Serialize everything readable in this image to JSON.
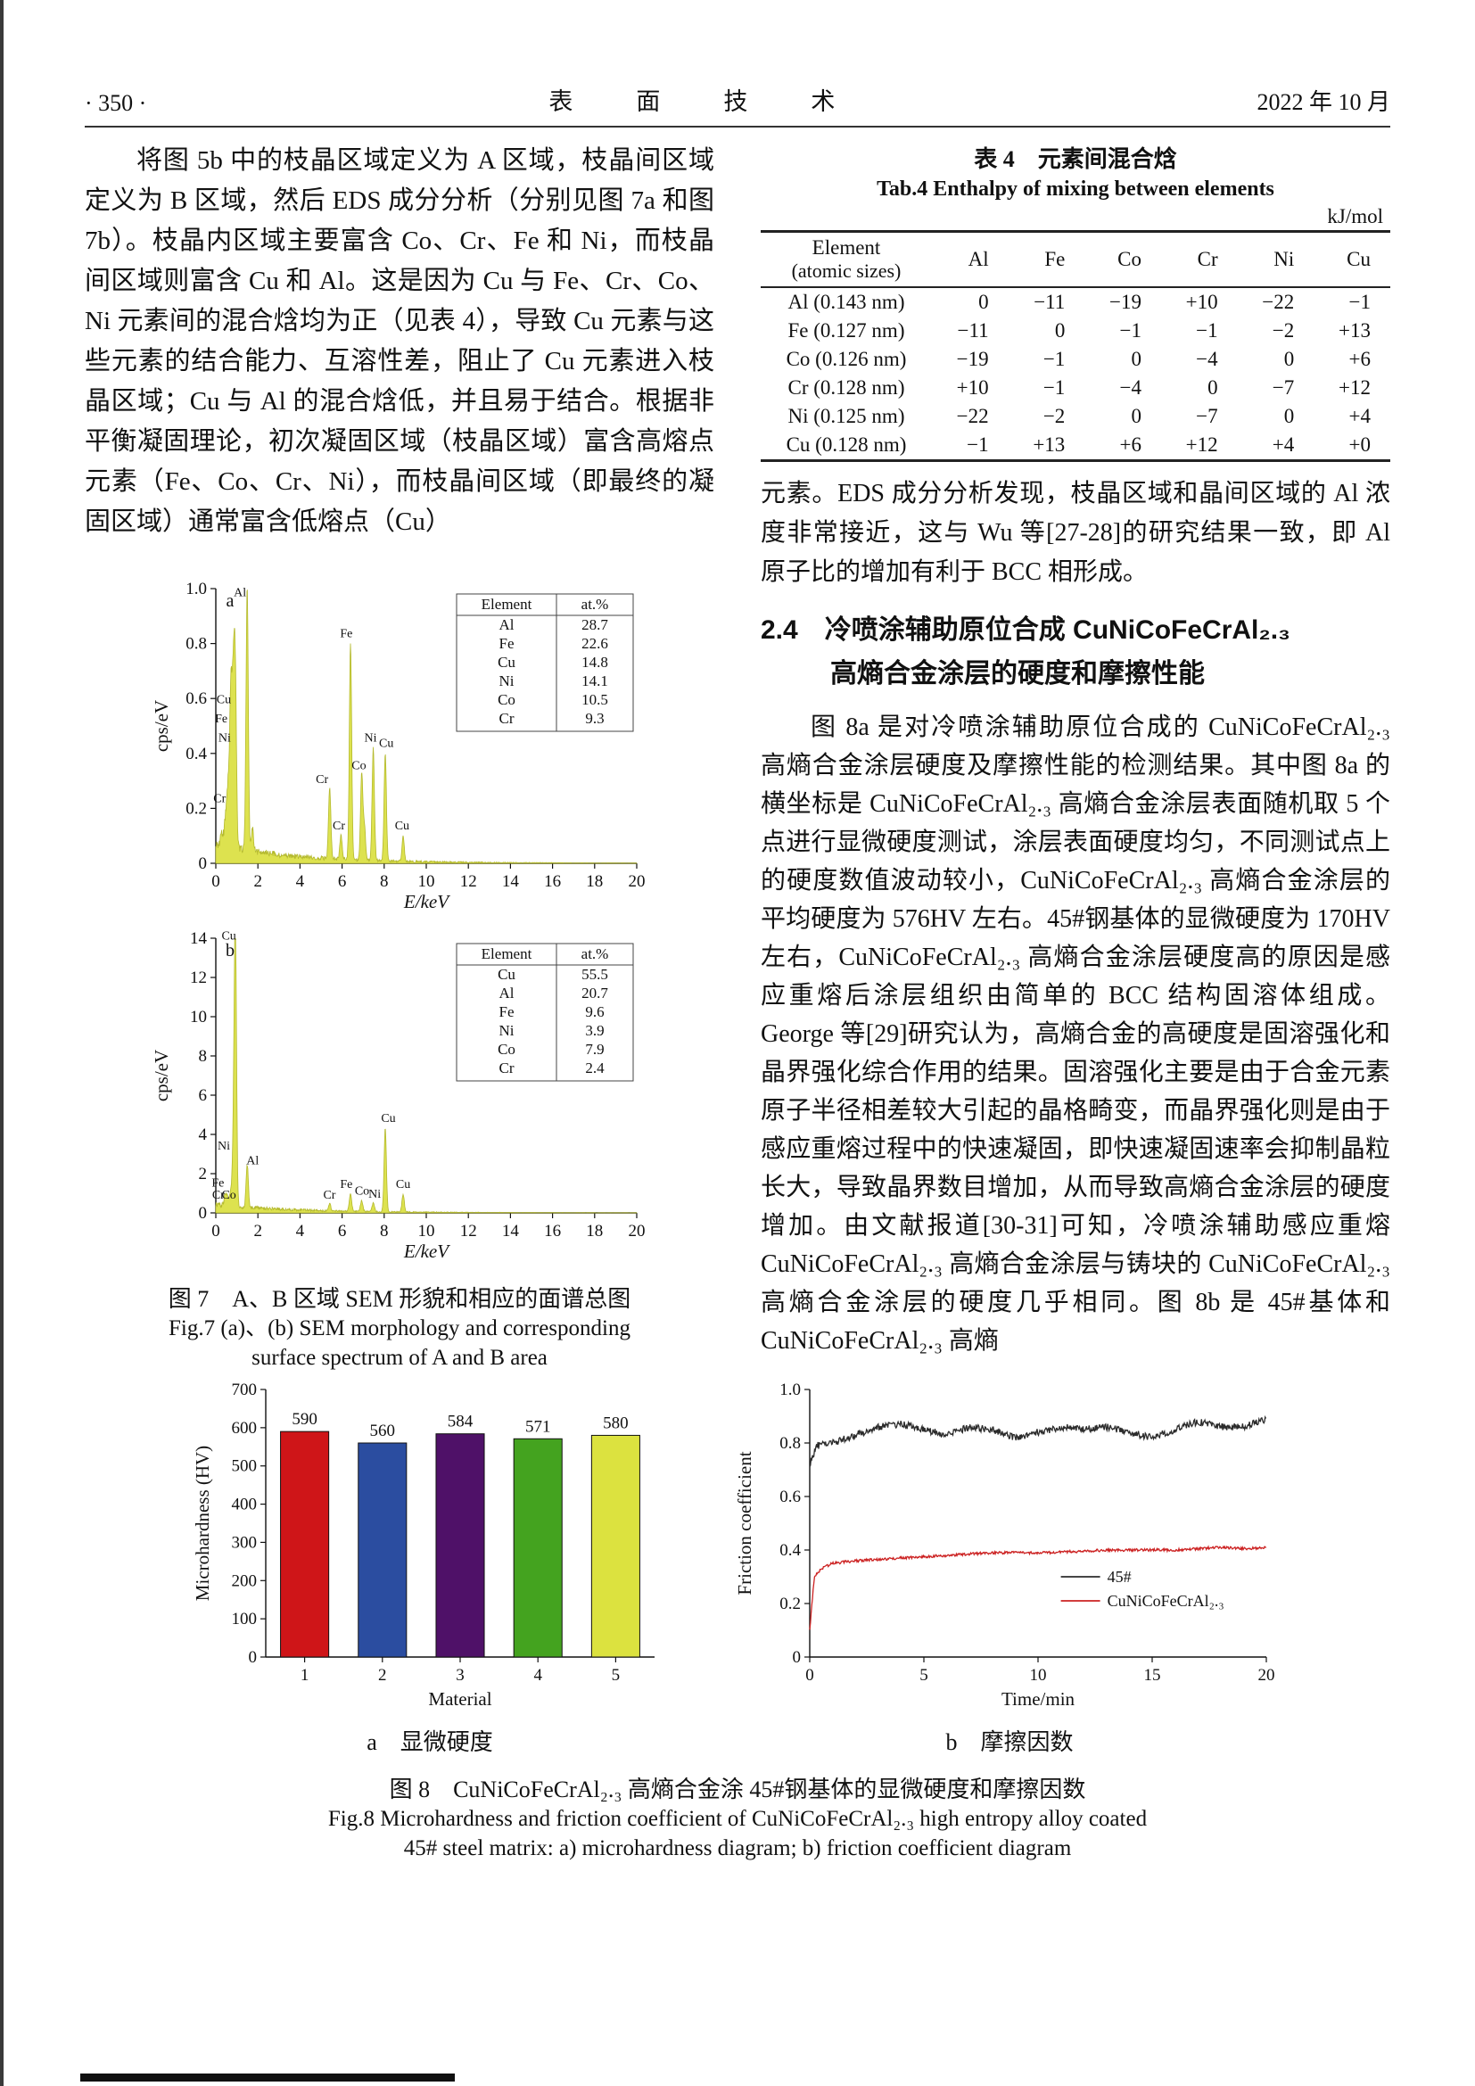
{
  "header": {
    "page_no": "· 350 ·",
    "journal": "表　面　技　术",
    "date": "2022 年 10 月"
  },
  "left": {
    "para1": "将图 5b 中的枝晶区域定义为 A 区域，枝晶间区域定义为 B 区域，然后 EDS 成分分析（分别见图 7a 和图 7b）。枝晶内区域主要富含 Co、Cr、Fe 和 Ni，而枝晶间区域则富含 Cu 和 Al。这是因为 Cu 与 Fe、Cr、Co、Ni 元素间的混合焓均为正（见表 4），导致 Cu 元素与这些元素的结合能力、互溶性差，阻止了 Cu 元素进入枝晶区域；Cu 与 Al 的混合焓低，并且易于结合。根据非平衡凝固理论，初次凝固区域（枝晶区域）富含高熔点元素（Fe、Co、Cr、Ni），而枝晶间区域（即最终的凝固区域）通常富含低熔点（Cu）",
    "fig7": {
      "caption_cn": "图 7　A、B 区域 SEM 形貌和相应的面谱总图",
      "caption_en1": "Fig.7 (a)、(b) SEM morphology and corresponding",
      "caption_en2": "surface spectrum of A and B area"
    }
  },
  "table4": {
    "title_cn": "表 4　元素间混合焓",
    "title_en": "Tab.4 Enthalpy of mixing between elements",
    "unit": "kJ/mol",
    "header_main": "Element",
    "header_sub": "(atomic sizes)",
    "columns": [
      "Al",
      "Fe",
      "Co",
      "Cr",
      "Ni",
      "Cu"
    ],
    "rows": [
      {
        "element": "Al (0.143 nm)",
        "values": [
          "0",
          "−11",
          "−19",
          "+10",
          "−22",
          "−1"
        ]
      },
      {
        "element": "Fe (0.127 nm)",
        "values": [
          "−11",
          "0",
          "−1",
          "−1",
          "−2",
          "+13"
        ]
      },
      {
        "element": "Co (0.126 nm)",
        "values": [
          "−19",
          "−1",
          "0",
          "−4",
          "0",
          "+6"
        ]
      },
      {
        "element": "Cr (0.128 nm)",
        "values": [
          "+10",
          "−1",
          "−4",
          "0",
          "−7",
          "+12"
        ]
      },
      {
        "element": "Ni (0.125 nm)",
        "values": [
          "−22",
          "−2",
          "0",
          "−7",
          "0",
          "+4"
        ]
      },
      {
        "element": "Cu (0.128 nm)",
        "values": [
          "−1",
          "+13",
          "+6",
          "+12",
          "+4",
          "+0"
        ]
      }
    ]
  },
  "right": {
    "para1": "元素。EDS 成分分析发现，枝晶区域和晶间区域的 Al 浓度非常接近，这与 Wu 等[27-28]的研究结果一致，即 Al 原子比的增加有利于 BCC 相形成。",
    "heading_line1": "2.4　冷喷涂辅助原位合成 CuNiCoFeCrAl₂.₃",
    "heading_line2": "高熵合金涂层的硬度和摩擦性能",
    "para2": "图 8a 是对冷喷涂辅助原位合成的 CuNiCoFeCrAl₂.₃ 高熵合金涂层硬度及摩擦性能的检测结果。其中图 8a 的横坐标是 CuNiCoFeCrAl₂.₃ 高熵合金涂层表面随机取 5 个点进行显微硬度测试，涂层表面硬度均匀，不同测试点上的硬度数值波动较小，CuNiCoFeCrAl₂.₃ 高熵合金涂层的平均硬度为 576HV 左右。45#钢基体的显微硬度为 170HV 左右，CuNiCoFeCrAl₂.₃ 高熵合金涂层硬度高的原因是感应重熔后涂层组织由简单的 BCC 结构固溶体组成。George 等[29]研究认为，高熵合金的高硬度是固溶强化和晶界强化综合作用的结果。固溶强化主要是由于合金元素原子半径相差较大引起的晶格畸变，而晶界强化则是由于感应重熔过程中的快速凝固，即快速凝固速率会抑制晶粒长大，导致晶界数目增加，从而导致高熵合金涂层的硬度增加。由文献报道[30-31]可知，冷喷涂辅助感应重熔 CuNiCoFeCrAl₂.₃ 高熵合金涂层与铸块的 CuNiCoFeCrAl₂.₃ 高熵合金涂层的硬度几乎相同。图 8b 是 45#基体和 CuNiCoFeCrAl₂.₃ 高熵"
  },
  "fig8": {
    "caption_cn": "图 8　CuNiCoFeCrAl₂.₃ 高熵合金涂 45#钢基体的显微硬度和摩擦因数",
    "caption_en1": "Fig.8 Microhardness and friction coefficient of CuNiCoFeCrAl₂.₃ high entropy alloy coated",
    "caption_en2": "45# steel matrix: a) microhardness diagram; b) friction coefficient diagram"
  },
  "chart_data": [
    {
      "id": "eds-a",
      "type": "area",
      "panel": "a",
      "xlabel": "E/keV",
      "xlabel_italic": true,
      "ylabel": "cps/eV",
      "xlim": [
        0,
        20
      ],
      "ylim": [
        0,
        1.0
      ],
      "xtick_step": 2,
      "ytick_step": 0.2,
      "fill": "#dde24f",
      "stroke": "#b4b92e",
      "continuum": 0.055,
      "noise": 0.035,
      "peaks": [
        [
          0.28,
          0.05
        ],
        [
          0.45,
          0.09
        ],
        [
          0.57,
          0.2
        ],
        [
          0.7,
          0.48
        ],
        [
          0.78,
          0.28
        ],
        [
          0.85,
          0.44
        ],
        [
          0.93,
          0.55
        ],
        [
          1.49,
          0.95
        ],
        [
          1.74,
          0.08
        ],
        [
          5.41,
          0.26
        ],
        [
          5.95,
          0.09
        ],
        [
          6.4,
          0.79
        ],
        [
          6.93,
          0.31
        ],
        [
          7.06,
          0.12
        ],
        [
          7.48,
          0.41
        ],
        [
          8.05,
          0.39
        ],
        [
          8.9,
          0.09
        ]
      ],
      "labels": [
        {
          "t": "Al",
          "x": 1.15,
          "y": 0.96
        },
        {
          "t": "Cu",
          "x": 0.38,
          "y": 0.57
        },
        {
          "t": "Fe",
          "x": 0.26,
          "y": 0.5
        },
        {
          "t": "Ni",
          "x": 0.42,
          "y": 0.43
        },
        {
          "t": "Cr",
          "x": 0.18,
          "y": 0.21
        },
        {
          "t": "Cr",
          "x": 5.05,
          "y": 0.28
        },
        {
          "t": "Cr",
          "x": 5.85,
          "y": 0.11
        },
        {
          "t": "Fe",
          "x": 6.2,
          "y": 0.81
        },
        {
          "t": "Co",
          "x": 6.8,
          "y": 0.33
        },
        {
          "t": "Ni",
          "x": 7.35,
          "y": 0.43
        },
        {
          "t": "Cu",
          "x": 8.1,
          "y": 0.41
        },
        {
          "t": "Cu",
          "x": 8.85,
          "y": 0.11
        }
      ],
      "legend": {
        "header": [
          "Element",
          "at.%"
        ],
        "rows": [
          [
            "Al",
            "28.7"
          ],
          [
            "Fe",
            "22.6"
          ],
          [
            "Cu",
            "14.8"
          ],
          [
            "Ni",
            "14.1"
          ],
          [
            "Co",
            "10.5"
          ],
          [
            "Cr",
            "9.3"
          ]
        ]
      }
    },
    {
      "id": "eds-b",
      "type": "area",
      "panel": "b",
      "xlabel": "E/keV",
      "xlabel_italic": true,
      "ylabel": "cps/eV",
      "xlim": [
        0,
        20
      ],
      "ylim": [
        0,
        14
      ],
      "xtick_step": 2,
      "ytick_step": 2,
      "fill": "#dde24f",
      "stroke": "#b4b92e",
      "continuum": 0.022,
      "noise": 0.018,
      "peaks": [
        [
          0.45,
          0.55
        ],
        [
          0.57,
          0.4
        ],
        [
          0.7,
          0.55
        ],
        [
          0.78,
          0.5
        ],
        [
          0.85,
          2.9
        ],
        [
          0.93,
          13.7
        ],
        [
          1.49,
          2.2
        ],
        [
          5.41,
          0.35
        ],
        [
          6.4,
          0.9
        ],
        [
          6.93,
          0.55
        ],
        [
          7.48,
          0.45
        ],
        [
          8.05,
          4.25
        ],
        [
          8.9,
          0.9
        ]
      ],
      "labels": [
        {
          "t": "Cu",
          "x": 0.62,
          "y": 13.75
        },
        {
          "t": "Ni",
          "x": 0.38,
          "y": 3.05
        },
        {
          "t": "Al",
          "x": 1.75,
          "y": 2.3
        },
        {
          "t": "Fe",
          "x": 0.1,
          "y": 1.15
        },
        {
          "t": "Cr",
          "x": 0.12,
          "y": 0.55
        },
        {
          "t": "Co",
          "x": 0.62,
          "y": 0.55
        },
        {
          "t": "Fe",
          "x": 6.2,
          "y": 1.1
        },
        {
          "t": "Cr",
          "x": 5.4,
          "y": 0.55
        },
        {
          "t": "Co",
          "x": 6.95,
          "y": 0.75
        },
        {
          "t": "Ni",
          "x": 7.55,
          "y": 0.6
        },
        {
          "t": "Cu",
          "x": 8.2,
          "y": 4.45
        },
        {
          "t": "Cu",
          "x": 8.9,
          "y": 1.1
        }
      ],
      "legend": {
        "header": [
          "Element",
          "at.%"
        ],
        "rows": [
          [
            "Cu",
            "55.5"
          ],
          [
            "Al",
            "20.7"
          ],
          [
            "Fe",
            "9.6"
          ],
          [
            "Ni",
            "3.9"
          ],
          [
            "Co",
            "7.9"
          ],
          [
            "Cr",
            "2.4"
          ]
        ]
      }
    },
    {
      "id": "hardness-bar",
      "type": "bar",
      "categories": [
        "1",
        "2",
        "3",
        "4",
        "5"
      ],
      "values": [
        590,
        560,
        584,
        571,
        580
      ],
      "colors": [
        "#cf1518",
        "#2b4da0",
        "#4f1168",
        "#44a31f",
        "#dce23f"
      ],
      "xlabel": "Material",
      "ylabel": "Microhardness (HV)",
      "ylim": [
        0,
        700
      ],
      "ytick_step": 100,
      "sub_caption": "a　显微硬度"
    },
    {
      "id": "friction-line",
      "type": "line",
      "xlabel": "Time/min",
      "ylabel": "Friction coefficient",
      "xlim": [
        0,
        20
      ],
      "ylim": [
        0,
        1.0
      ],
      "xticks": [
        0,
        5,
        10,
        15,
        20
      ],
      "ytick_step": 0.2,
      "legend_pos": [
        11,
        0.3
      ],
      "series": [
        {
          "name": "45#",
          "color": "#2b2b2b",
          "noise": 0.013,
          "points": [
            [
              0,
              0.72
            ],
            [
              0.3,
              0.79
            ],
            [
              1,
              0.8
            ],
            [
              2,
              0.83
            ],
            [
              3,
              0.86
            ],
            [
              4,
              0.87
            ],
            [
              5,
              0.85
            ],
            [
              6,
              0.83
            ],
            [
              7,
              0.86
            ],
            [
              8,
              0.85
            ],
            [
              9,
              0.82
            ],
            [
              10,
              0.84
            ],
            [
              11,
              0.86
            ],
            [
              12,
              0.85
            ],
            [
              13,
              0.86
            ],
            [
              14,
              0.84
            ],
            [
              15,
              0.82
            ],
            [
              16,
              0.85
            ],
            [
              17,
              0.88
            ],
            [
              18,
              0.86
            ],
            [
              19,
              0.86
            ],
            [
              20,
              0.89
            ]
          ]
        },
        {
          "name": "CuNiCoFeCrAl₂.₃",
          "color": "#cc2222",
          "noise": 0.005,
          "points": [
            [
              0,
              0.1
            ],
            [
              0.2,
              0.3
            ],
            [
              0.5,
              0.33
            ],
            [
              1,
              0.35
            ],
            [
              2,
              0.36
            ],
            [
              3,
              0.365
            ],
            [
              4,
              0.37
            ],
            [
              5,
              0.375
            ],
            [
              6,
              0.38
            ],
            [
              7,
              0.385
            ],
            [
              8,
              0.39
            ],
            [
              9,
              0.39
            ],
            [
              10,
              0.39
            ],
            [
              11,
              0.392
            ],
            [
              12,
              0.395
            ],
            [
              13,
              0.4
            ],
            [
              14,
              0.4
            ],
            [
              15,
              0.4
            ],
            [
              16,
              0.4
            ],
            [
              17,
              0.405
            ],
            [
              18,
              0.41
            ],
            [
              19,
              0.405
            ],
            [
              20,
              0.41
            ]
          ]
        }
      ],
      "sub_caption": "b　摩擦因数"
    }
  ]
}
